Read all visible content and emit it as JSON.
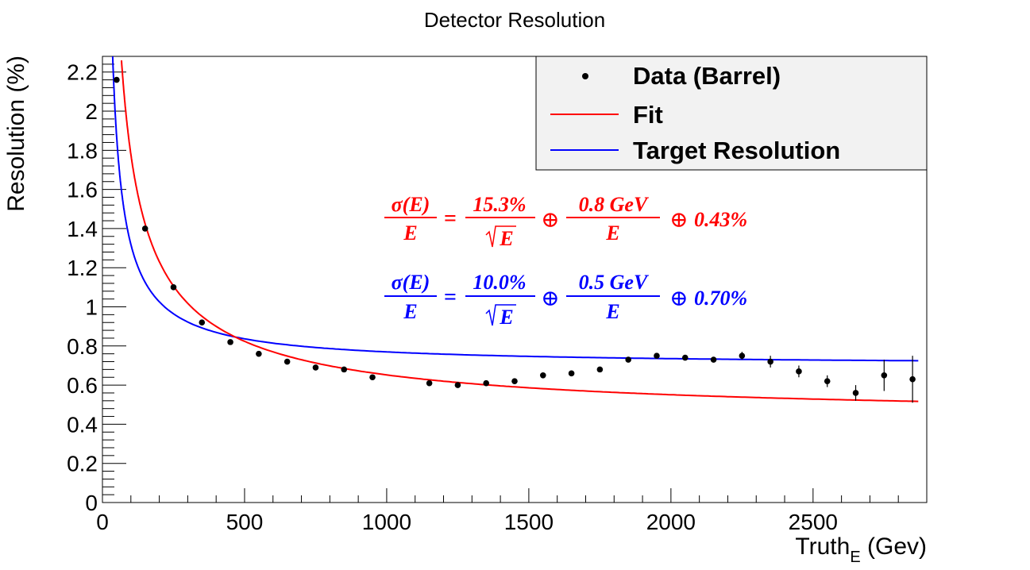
{
  "chart_data": {
    "type": "scatter",
    "title": "Detector Resolution",
    "xlabel_main": "Truth",
    "xlabel_sub": "E",
    "xlabel_unit": " (Gev)",
    "ylabel": "Resolution (%)",
    "xlim": [
      0,
      2900
    ],
    "ylim": [
      0,
      2.28
    ],
    "x_ticks": [
      "0",
      "500",
      "1000",
      "1500",
      "2000",
      "2500"
    ],
    "x_tick_values": [
      0,
      500,
      1000,
      1500,
      2000,
      2500
    ],
    "y_ticks": [
      "0",
      "0.2",
      "0.4",
      "0.6",
      "0.8",
      "1",
      "1.2",
      "1.4",
      "1.6",
      "1.8",
      "2",
      "2.2"
    ],
    "y_tick_values": [
      0,
      0.2,
      0.4,
      0.6,
      0.8,
      1.0,
      1.2,
      1.4,
      1.6,
      1.8,
      2.0,
      2.2
    ],
    "grid": false,
    "legend_position": "top-right",
    "series": [
      {
        "name": "Data (Barrel)",
        "kind": "points",
        "color": "#000000",
        "x": [
          50,
          150,
          250,
          350,
          450,
          550,
          650,
          750,
          850,
          950,
          1150,
          1250,
          1350,
          1450,
          1550,
          1650,
          1750,
          1850,
          1950,
          2050,
          2150,
          2250,
          2350,
          2450,
          2550,
          2650,
          2750,
          2850
        ],
        "y": [
          2.16,
          1.4,
          1.1,
          0.92,
          0.82,
          0.76,
          0.72,
          0.69,
          0.68,
          0.64,
          0.61,
          0.6,
          0.61,
          0.62,
          0.65,
          0.66,
          0.68,
          0.73,
          0.75,
          0.74,
          0.73,
          0.75,
          0.72,
          0.67,
          0.62,
          0.56,
          0.65,
          0.63
        ],
        "yerr": [
          0.01,
          0.01,
          0.01,
          0.01,
          0.01,
          0.01,
          0.01,
          0.01,
          0.01,
          0.01,
          0.01,
          0.01,
          0.01,
          0.01,
          0.01,
          0.01,
          0.01,
          0.01,
          0.01,
          0.01,
          0.01,
          0.02,
          0.03,
          0.03,
          0.03,
          0.04,
          0.08,
          0.12
        ]
      },
      {
        "name": "Fit",
        "kind": "curve",
        "color": "#ff0000",
        "stochastic_pct": 15.3,
        "noise_gev": 0.8,
        "constant_pct": 0.43
      },
      {
        "name": "Target Resolution",
        "kind": "curve",
        "color": "#0000ff",
        "stochastic_pct": 10.0,
        "noise_gev": 0.5,
        "constant_pct": 0.7
      }
    ],
    "annotations": [
      {
        "color": "#ff0000",
        "lhs_num": "σ(E)",
        "lhs_den": "E",
        "eq": "=",
        "t1_num": "15.3%",
        "t1_den": "E",
        "oplus": "⊕",
        "t2_num": "0.8 GeV",
        "t2_den": "E",
        "t3": "0.43%"
      },
      {
        "color": "#0000ff",
        "lhs_num": "σ(E)",
        "lhs_den": "E",
        "eq": "=",
        "t1_num": "10.0%",
        "t1_den": "E",
        "oplus": "⊕",
        "t2_num": "0.5 GeV",
        "t2_den": "E",
        "t3": "0.70%"
      }
    ]
  }
}
